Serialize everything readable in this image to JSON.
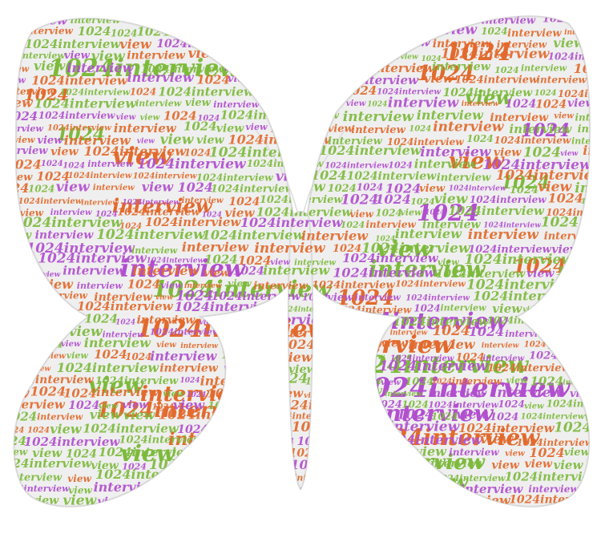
{
  "image": {
    "kind": "word-cloud",
    "shape": "butterfly",
    "words": [
      "1024interview",
      "interview",
      "1024",
      "view"
    ],
    "colors": [
      "#e26a2c",
      "#7dba3c",
      "#b14fcf"
    ],
    "wing_fill": "#efefef",
    "wing_outline": "#d9d9d9",
    "antenna_color": "#dcdcdc"
  }
}
